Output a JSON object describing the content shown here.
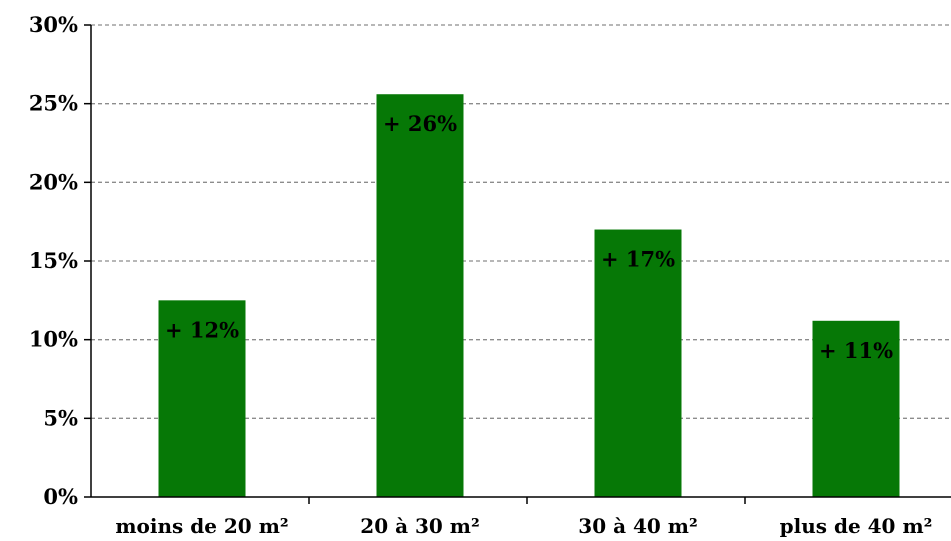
{
  "chart_data": {
    "type": "bar",
    "title": "",
    "xlabel": "",
    "ylabel": "",
    "categories": [
      "moins de 20 m²",
      "20 à 30 m²",
      "30 à 40 m²",
      "plus de 40 m²"
    ],
    "values": [
      12.5,
      25.6,
      17.0,
      11.2
    ],
    "data_labels": [
      "+ 12%",
      "+ 26%",
      "+ 17%",
      "+ 11%"
    ],
    "ylim": [
      0,
      30
    ],
    "yticks": [
      0,
      5,
      10,
      15,
      20,
      25,
      30
    ],
    "ytick_labels": [
      "0%",
      "5%",
      "10%",
      "15%",
      "20%",
      "25%",
      "30%"
    ],
    "grid": true,
    "bar_color": "#067806",
    "grid_color": "#8c8c8c"
  }
}
